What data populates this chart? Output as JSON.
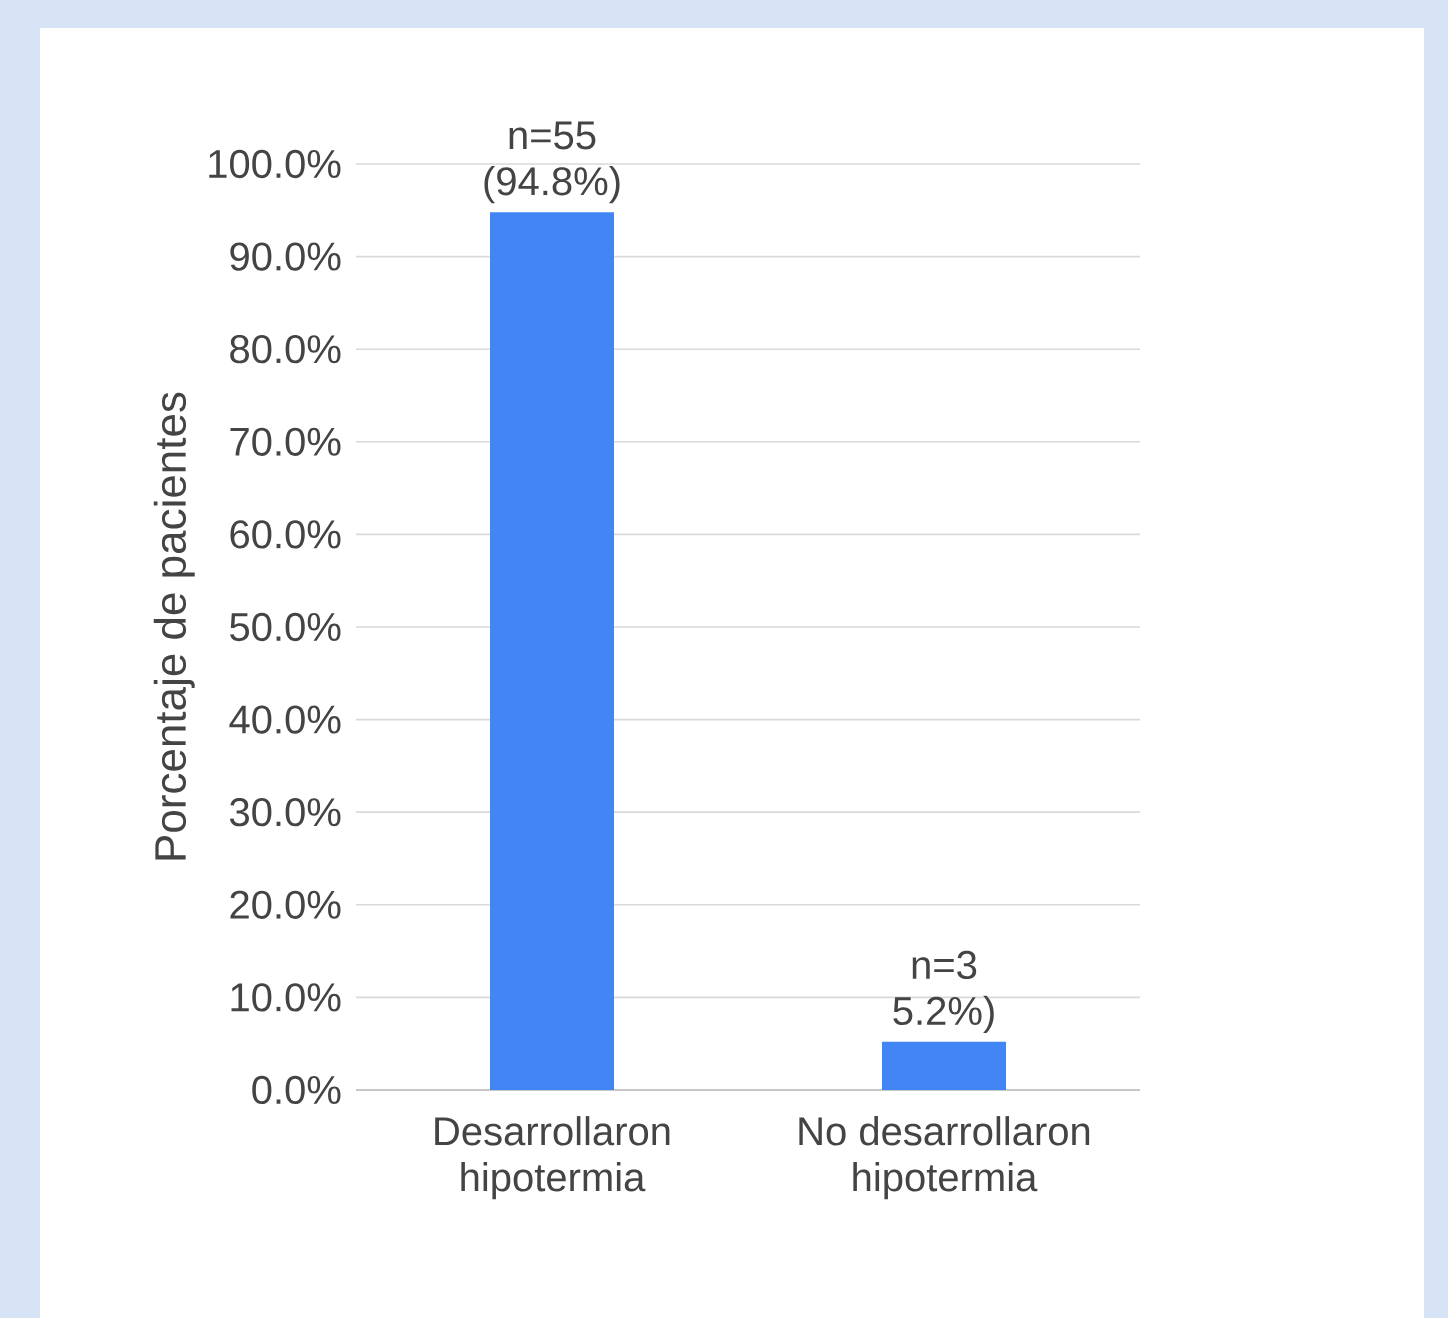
{
  "chart_data": {
    "type": "bar",
    "ylabel": "Porcentaje de pacientes",
    "categories": [
      "Desarrollaron hipotermia",
      "No desarrollaron hipotermia"
    ],
    "values": [
      94.8,
      5.2
    ],
    "value_labels": [
      "n=55 (94.8%)",
      "n=3 5.2%)"
    ],
    "color": "#4285f4",
    "ylim": [
      0,
      100
    ],
    "yticks": [
      {
        "value": 0,
        "label": "0.0%"
      },
      {
        "value": 10,
        "label": "10.0%"
      },
      {
        "value": 20,
        "label": "20.0%"
      },
      {
        "value": 30,
        "label": "30.0%"
      },
      {
        "value": 40,
        "label": "40.0%"
      },
      {
        "value": 50,
        "label": "50.0%"
      },
      {
        "value": 60,
        "label": "60.0%"
      },
      {
        "value": 70,
        "label": "70.0%"
      },
      {
        "value": 80,
        "label": "80.0%"
      },
      {
        "value": 90,
        "label": "90.0%"
      },
      {
        "value": 100,
        "label": "100.0%"
      }
    ],
    "grid": "y"
  }
}
